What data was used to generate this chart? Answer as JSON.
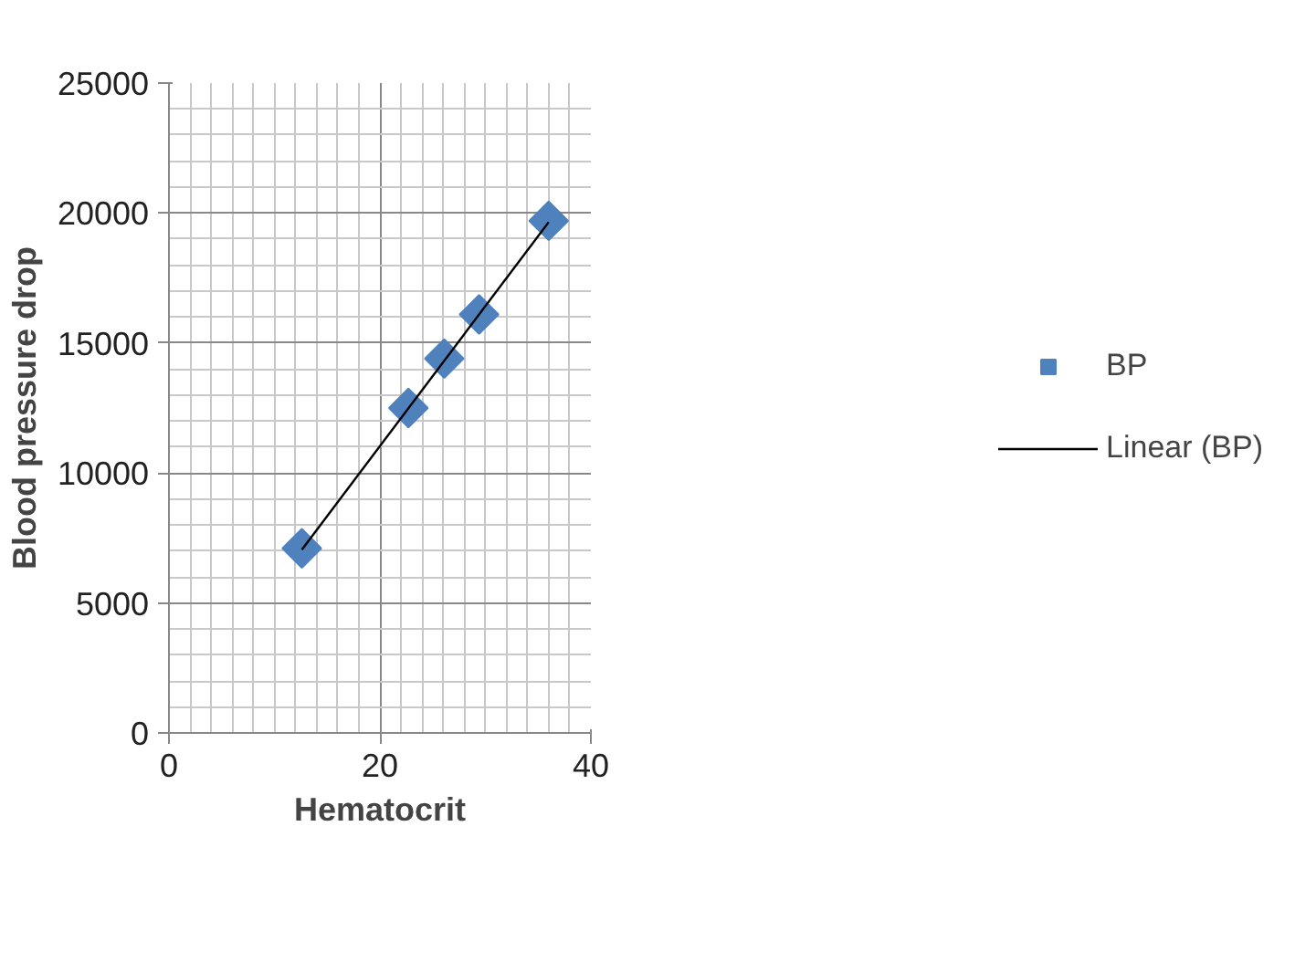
{
  "chart_data": {
    "type": "scatter",
    "xlabel": "Hematocrit",
    "ylabel": "Blood pressure drop",
    "xlim": [
      0,
      40
    ],
    "xticks": [
      0,
      20,
      40
    ],
    "ylim": [
      0,
      25000
    ],
    "yticks": [
      0,
      5000,
      10000,
      15000,
      20000,
      25000
    ],
    "grid": true,
    "legend": "right",
    "series": [
      {
        "name": "BP",
        "marker": "diamond",
        "color": "#4f81bd",
        "x": [
          12.6,
          22.7,
          26.1,
          29.4,
          36.0
        ],
        "values": [
          7100,
          12500,
          14400,
          16100,
          19700
        ]
      },
      {
        "name": "Linear (BP)",
        "type": "line",
        "color": "#000000",
        "line_style": "solid",
        "x": [
          12.6,
          36.0
        ],
        "values": [
          7050,
          19650
        ]
      }
    ]
  }
}
